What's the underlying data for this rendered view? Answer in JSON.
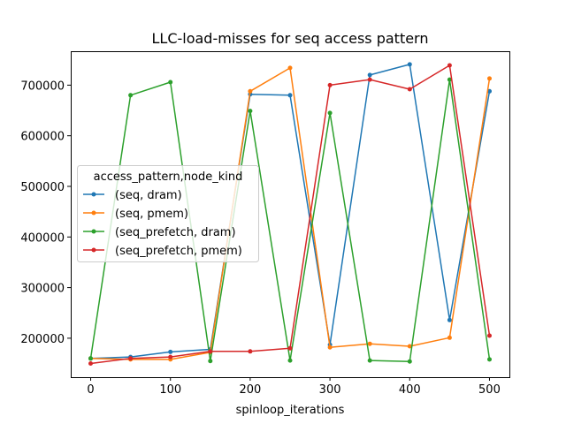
{
  "chart_data": {
    "type": "line",
    "title": "LLC-load-misses for seq access pattern",
    "xlabel": "spinloop_iterations",
    "ylabel": "",
    "xlim": [
      -25,
      525
    ],
    "ylim": [
      123000,
      767000
    ],
    "xticks": [
      0,
      100,
      200,
      300,
      400,
      500
    ],
    "yticks": [
      200000,
      300000,
      400000,
      500000,
      600000,
      700000
    ],
    "x": [
      0,
      50,
      100,
      150,
      200,
      250,
      300,
      350,
      400,
      450,
      500
    ],
    "grid": false,
    "legend": {
      "title": "access_pattern,node_kind",
      "placement": "center-left"
    },
    "series": [
      {
        "name": "(seq, dram)",
        "color": "#1f77b4",
        "values": [
          160000,
          163000,
          173000,
          178000,
          682000,
          680000,
          187000,
          720000,
          741000,
          236000,
          688000
        ]
      },
      {
        "name": "(seq, pmem)",
        "color": "#ff7f0e",
        "values": [
          160000,
          158000,
          158000,
          172000,
          688000,
          734000,
          182000,
          189000,
          184000,
          201000,
          713000
        ]
      },
      {
        "name": "(seq_prefetch, dram)",
        "color": "#2ca02c",
        "values": [
          160000,
          680000,
          706000,
          155000,
          649000,
          156000,
          645000,
          156000,
          154000,
          711000,
          158000
        ]
      },
      {
        "name": "(seq_prefetch, pmem)",
        "color": "#d62728",
        "values": [
          150000,
          160000,
          163000,
          174000,
          174000,
          180000,
          700000,
          711000,
          692000,
          739000,
          205000
        ]
      }
    ]
  }
}
